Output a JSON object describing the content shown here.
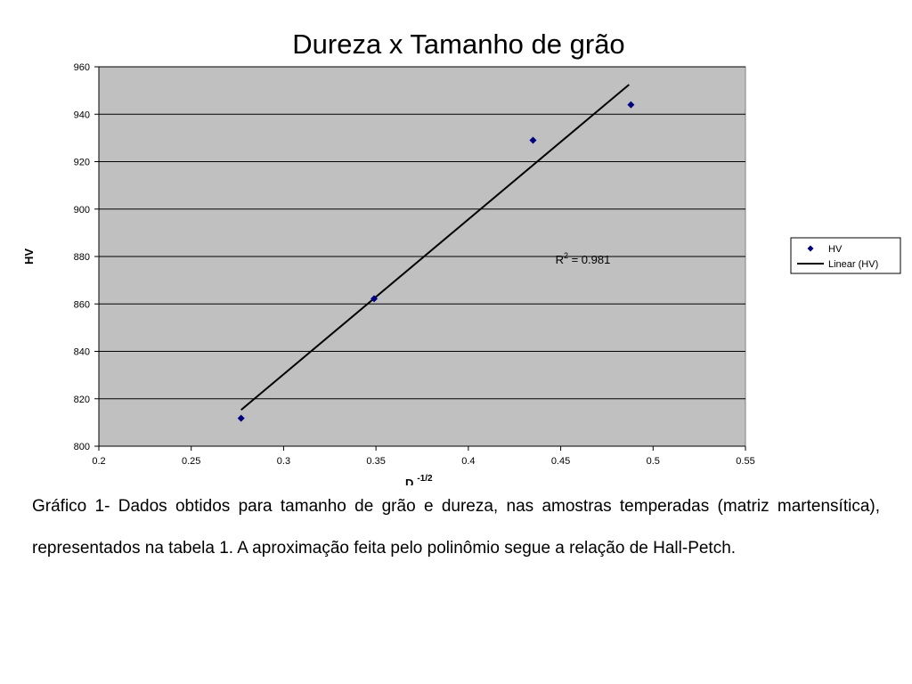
{
  "chart_data": {
    "type": "scatter",
    "title": "Dureza x Tamanho de grão",
    "xlabel": "D",
    "xlabel_superscript": "-1/2",
    "ylabel": "HV",
    "xlim": [
      0.2,
      0.55
    ],
    "ylim": [
      800,
      960
    ],
    "x_ticks": [
      "0.2",
      "0.25",
      "0.3",
      "0.35",
      "0.4",
      "0.45",
      "0.5",
      "0.55"
    ],
    "y_ticks": [
      "800",
      "820",
      "840",
      "860",
      "880",
      "900",
      "920",
      "940",
      "960"
    ],
    "grid": "horizontal",
    "plot_background": "#c0c0c0",
    "series": [
      {
        "name": "HV",
        "color": "#000080",
        "marker": "diamond",
        "points": [
          {
            "x": 0.277,
            "y": 811.8
          },
          {
            "x": 0.349,
            "y": 862.2
          },
          {
            "x": 0.435,
            "y": 929.0
          },
          {
            "x": 0.488,
            "y": 944.0
          }
        ]
      }
    ],
    "trendline": {
      "name": "Linear (HV)",
      "color": "#000000",
      "x_start": 0.277,
      "y_start": 815.3,
      "x_end": 0.487,
      "y_end": 952.5
    },
    "annotation": {
      "prefix": "R",
      "superscript": "2",
      "suffix": " = 0.981",
      "x": 0.45,
      "y": 878.5
    },
    "legend": {
      "placement": "right",
      "entries": [
        "HV",
        "Linear (HV)"
      ]
    }
  },
  "caption": "Gráfico 1- Dados obtidos para tamanho de grão e dureza, nas amostras temperadas (matriz martensítica), representados na tabela 1. A aproximação feita pelo polinômio segue a relação de Hall-Petch."
}
